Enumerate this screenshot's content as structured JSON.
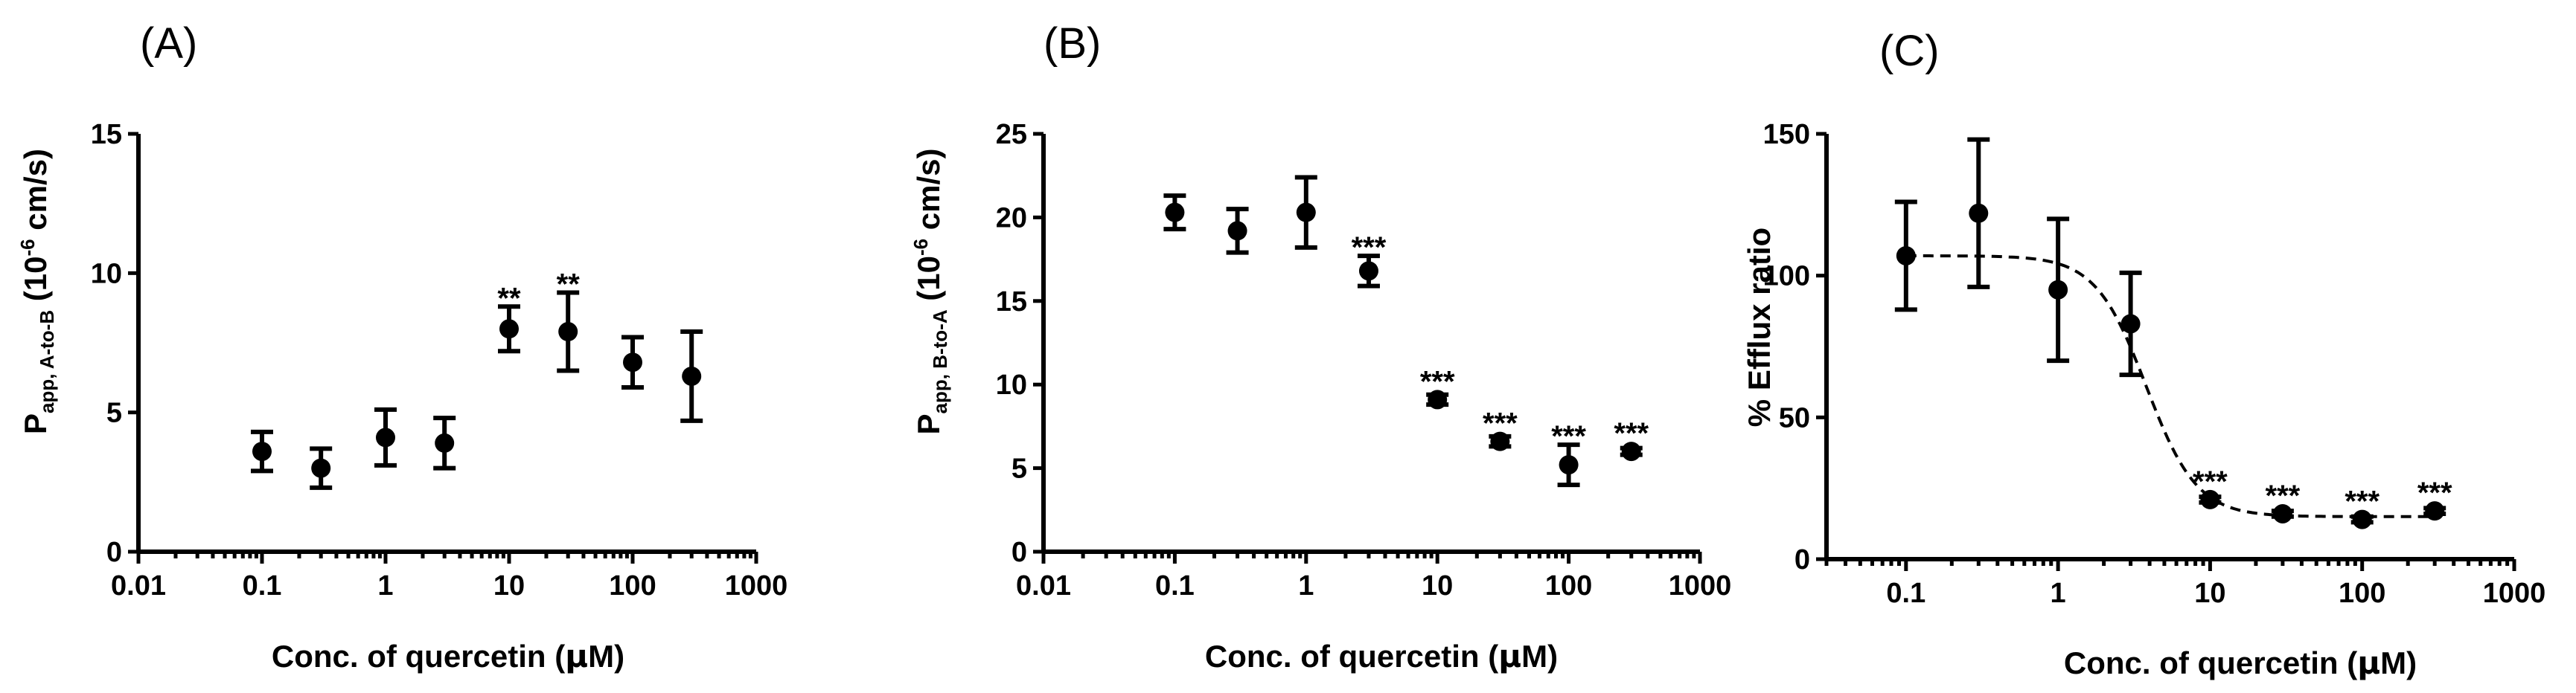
{
  "chart_data": [
    {
      "panel_label": "(A)",
      "type": "scatter",
      "xscale": "log",
      "xlabel": "Conc. of quercetin (μM)",
      "xlabel_parts": {
        "pre": "Conc. of quercetin (",
        "mu": "μ",
        "post": "M)"
      },
      "ylabel_parts": {
        "main": "P",
        "sub": "app, A-to-B",
        "unit_open": " (10",
        "sup": "-6",
        "unit_close": " cm/s)"
      },
      "xlim": [
        0.01,
        1000
      ],
      "ylim": [
        0,
        15
      ],
      "x_ticks": [
        "0.01",
        "0.1",
        "1",
        "10",
        "100",
        "1000"
      ],
      "y_ticks": [
        "0",
        "5",
        "10",
        "15"
      ],
      "x": [
        0.1,
        0.3,
        1,
        3,
        10,
        30,
        100,
        300
      ],
      "y": [
        3.6,
        3.0,
        4.1,
        3.9,
        8.0,
        7.9,
        6.8,
        6.3
      ],
      "err": [
        0.7,
        0.7,
        1.0,
        0.9,
        0.8,
        1.4,
        0.9,
        1.6
      ],
      "significance": [
        "",
        "",
        "",
        "",
        "**",
        "**",
        "",
        ""
      ]
    },
    {
      "panel_label": "(B)",
      "type": "scatter",
      "xscale": "log",
      "xlabel": "Conc. of quercetin (μM)",
      "xlabel_parts": {
        "pre": "Conc. of quercetin (",
        "mu": "μ",
        "post": "M)"
      },
      "ylabel_parts": {
        "main": "P",
        "sub": "app, B-to-A",
        "unit_open": " (10",
        "sup": "-6",
        "unit_close": " cm/s)"
      },
      "xlim": [
        0.01,
        1000
      ],
      "ylim": [
        0,
        25
      ],
      "x_ticks": [
        "0.01",
        "0.1",
        "1",
        "10",
        "100",
        "1000"
      ],
      "y_ticks": [
        "0",
        "5",
        "10",
        "15",
        "20",
        "25"
      ],
      "x": [
        0.1,
        0.3,
        1,
        3,
        10,
        30,
        100,
        300
      ],
      "y": [
        20.3,
        19.2,
        20.3,
        16.8,
        9.1,
        6.6,
        5.2,
        6.0
      ],
      "err": [
        1.0,
        1.3,
        2.1,
        0.9,
        0.3,
        0.3,
        1.2,
        0.2
      ],
      "significance": [
        "",
        "",
        "",
        "***",
        "***",
        "***",
        "***",
        "***"
      ]
    },
    {
      "panel_label": "(C)",
      "type": "scatter",
      "xscale": "log",
      "xlabel": "Conc. of quercetin (μM)",
      "xlabel_parts": {
        "pre": "Conc. of quercetin (",
        "mu": "μ",
        "post": "M)"
      },
      "ylabel": "% Efflux ratio",
      "xlim": [
        0.03,
        1000
      ],
      "ylim": [
        0,
        150
      ],
      "x_ticks": [
        "0.1",
        "1",
        "10",
        "100",
        "1000"
      ],
      "y_ticks": [
        "0",
        "50",
        "100",
        "150"
      ],
      "x": [
        0.1,
        0.3,
        1,
        3,
        10,
        30,
        100,
        300
      ],
      "y": [
        107,
        122,
        95,
        83,
        21,
        16,
        14,
        17
      ],
      "err": [
        19,
        26,
        25,
        18,
        1,
        1,
        1,
        1
      ],
      "significance": [
        "",
        "",
        "",
        "",
        "***",
        "***",
        "***",
        "***"
      ],
      "fit": {
        "type": "sigmoidal dose-response",
        "top": 107,
        "bottom": 15,
        "ic50": 3.8,
        "hill": 2.6,
        "xrange": [
          0.1,
          300
        ]
      }
    }
  ]
}
